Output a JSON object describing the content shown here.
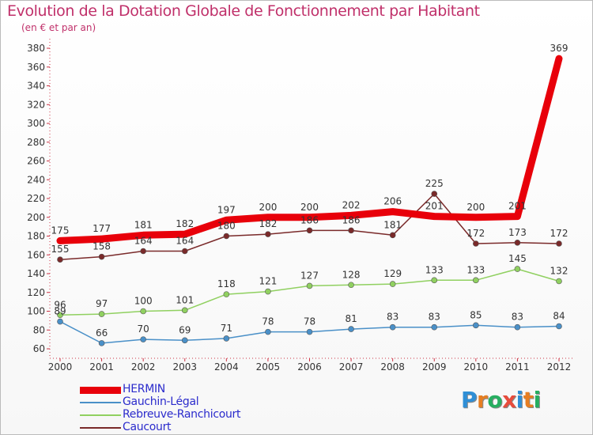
{
  "chart_data": {
    "type": "line",
    "title": "Evolution de la Dotation Globale de Fonctionnement par Habitant",
    "subtitle": "(en € et par an)",
    "xlabel": "",
    "ylabel": "",
    "categories": [
      "2000",
      "2001",
      "2002",
      "2003",
      "2004",
      "2005",
      "2006",
      "2007",
      "2008",
      "2009",
      "2010",
      "2011",
      "2012"
    ],
    "ylim": [
      60,
      380
    ],
    "yticks": [
      60,
      80,
      100,
      120,
      140,
      160,
      180,
      200,
      220,
      240,
      260,
      280,
      300,
      320,
      340,
      360,
      380
    ],
    "grid": false,
    "legend_position": "bottom-left",
    "series": [
      {
        "name": "HERMIN",
        "color": "#e8000a",
        "values": [
          175,
          177,
          181,
          182,
          197,
          200,
          200,
          202,
          206,
          201,
          200,
          201,
          369
        ]
      },
      {
        "name": "Gauchin-Légal",
        "color": "#4a90c8",
        "values": [
          89,
          66,
          70,
          69,
          71,
          78,
          78,
          81,
          83,
          83,
          85,
          83,
          84
        ]
      },
      {
        "name": "Rebreuve-Ranchicourt",
        "color": "#90d060",
        "values": [
          96,
          97,
          100,
          101,
          118,
          121,
          127,
          128,
          129,
          133,
          133,
          145,
          132
        ]
      },
      {
        "name": "Caucourt",
        "color": "#7a2a2a",
        "values": [
          155,
          158,
          164,
          164,
          180,
          182,
          186,
          186,
          181,
          225,
          172,
          173,
          172
        ]
      }
    ]
  },
  "logo": {
    "letters": [
      "P",
      "r",
      "o",
      "x",
      "i",
      "t",
      "i"
    ],
    "colors": [
      "#2f8fd6",
      "#e67e22",
      "#27ae60",
      "#e74c3c",
      "#2f8fd6",
      "#e67e22",
      "#27ae60"
    ]
  }
}
